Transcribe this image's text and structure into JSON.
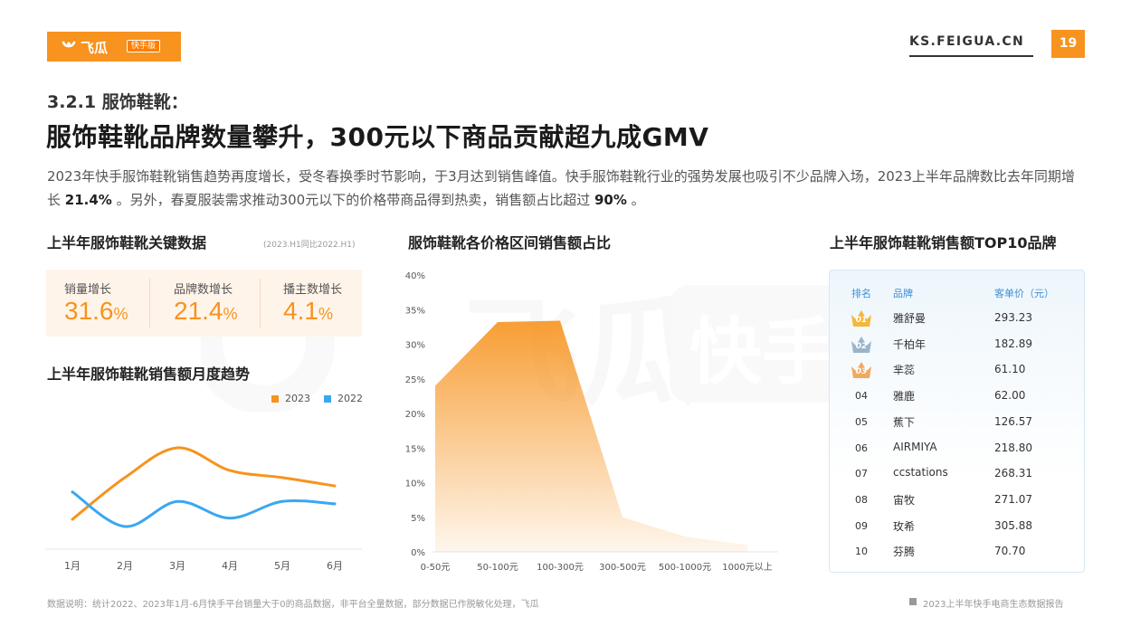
{
  "header": {
    "logo_text": "飞瓜",
    "logo_badge": "快手版",
    "site_url": "KS.FEIGUA.CN",
    "page_number": "19",
    "brand_color": "#f7931e"
  },
  "section_label": "3.2.1 服饰鞋靴：",
  "main_title": "服饰鞋靴品牌数量攀升，300元以下商品贡献超九成GMV",
  "intro": {
    "part1": "2023年快手服饰鞋靴销售趋势再度增长，受冬春换季时节影响，于3月达到销售峰值。快手服饰鞋靴行业的强势发展也吸引不少品牌入场，2023上半年品牌数比去年同期增长 ",
    "highlight1": "21.4%",
    "part2": " 。另外，春夏服装需求推动300元以下的价格带商品得到热卖，销售额占比超过 ",
    "highlight2": "90%",
    "part3": " 。"
  },
  "watermark": {
    "text": "飞瓜",
    "badge": "快手版"
  },
  "kpi_panel": {
    "title": "上半年服饰鞋靴关键数据",
    "note": "(2023.H1同比2022.H1)",
    "items": [
      {
        "label": "销量增长",
        "value": "31.6",
        "unit": "%"
      },
      {
        "label": "品牌数增长",
        "value": "21.4",
        "unit": "%"
      },
      {
        "label": "播主数增长",
        "value": "4.1",
        "unit": "%"
      }
    ]
  },
  "trend_panel": {
    "title": "上半年服饰鞋靴销售额月度趋势"
  },
  "price_panel": {
    "title": "服饰鞋靴各价格区间销售额占比"
  },
  "brand_panel": {
    "title": "上半年服饰鞋靴销售额TOP10品牌",
    "headers": {
      "rank": "排名",
      "brand": "品牌",
      "price": "客单价（元）"
    },
    "rows": [
      {
        "rank": "01",
        "brand": "雅舒曼",
        "price": "293.23"
      },
      {
        "rank": "02",
        "brand": "千柏年",
        "price": "182.89"
      },
      {
        "rank": "03",
        "brand": "芈蕊",
        "price": "61.10"
      },
      {
        "rank": "04",
        "brand": "雅鹿",
        "price": "62.00"
      },
      {
        "rank": "05",
        "brand": "蕉下",
        "price": "126.57"
      },
      {
        "rank": "06",
        "brand": "AIRMIYA",
        "price": "218.80"
      },
      {
        "rank": "07",
        "brand": "ccstations",
        "price": "268.31"
      },
      {
        "rank": "08",
        "brand": "宙牧",
        "price": "271.07"
      },
      {
        "rank": "09",
        "brand": "玫希",
        "price": "305.88"
      },
      {
        "rank": "10",
        "brand": "芬腾",
        "price": "70.70"
      }
    ],
    "crown_colors": [
      "#f5b63a",
      "#9bb5c8",
      "#f0a962"
    ]
  },
  "footer": {
    "note": "数据说明：统计2022、2023年1月-6月快手平台销量大于0的商品数据，非平台全量数据，部分数据已作脱敏化处理，飞瓜",
    "right": "2023上半年快手电商生态数据报告"
  },
  "chart_data": [
    {
      "type": "line",
      "categories": [
        "1月",
        "2月",
        "3月",
        "4月",
        "5月",
        "6月"
      ],
      "series": [
        {
          "name": "2023",
          "color": "#f7931e",
          "values": [
            25,
            60,
            85,
            66,
            60,
            53
          ]
        },
        {
          "name": "2022",
          "color": "#3aa7f0",
          "values": [
            48,
            19,
            40,
            26,
            40,
            38
          ]
        }
      ],
      "ylim": [
        0,
        110
      ],
      "y_axis_shown": false,
      "legend": "top-right",
      "grid": false
    },
    {
      "type": "area",
      "categories": [
        "0-50元",
        "50-100元",
        "100-300元",
        "300-500元",
        "500-1000元",
        "1000元以上"
      ],
      "values": [
        24,
        33.2,
        33.4,
        5,
        2.2,
        1
      ],
      "ylim": [
        0,
        40
      ],
      "yticks": [
        "0%",
        "5%",
        "10%",
        "15%",
        "20%",
        "25%",
        "30%",
        "35%",
        "40%"
      ],
      "color": "#f7931e",
      "grid": false,
      "legend": "none"
    }
  ]
}
